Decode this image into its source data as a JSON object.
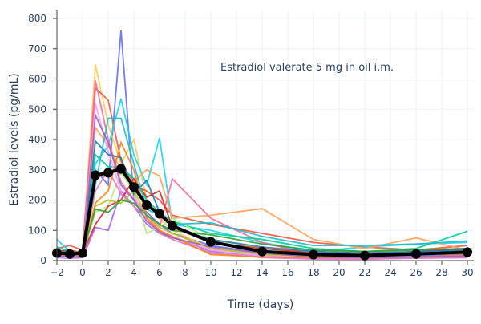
{
  "chart_data": {
    "type": "line",
    "title": "",
    "annotation": "Estradiol valerate 5 mg in oil i.m.",
    "xlabel": "Time (days)",
    "ylabel": "Estradiol levels (pg/mL)",
    "xlim": [
      -2,
      30
    ],
    "ylim": [
      0,
      800
    ],
    "xticks": [
      -2,
      0,
      2,
      4,
      6,
      8,
      10,
      12,
      14,
      16,
      18,
      20,
      22,
      24,
      26,
      28,
      30
    ],
    "yticks": [
      0,
      100,
      200,
      300,
      400,
      500,
      600,
      700,
      800
    ],
    "grid": true,
    "legend": "none",
    "x": [
      -2,
      -1,
      0,
      1,
      2,
      3,
      4,
      5,
      6,
      7,
      10,
      14,
      18,
      22,
      26,
      30
    ],
    "mean_series": {
      "color": "#000000",
      "values": [
        25,
        22,
        25,
        282,
        290,
        303,
        243,
        183,
        155,
        115,
        62,
        30,
        20,
        17,
        22,
        28
      ]
    },
    "series": [
      {
        "color": "#636efa",
        "values": [
          20,
          15,
          20,
          300,
          250,
          760,
          200,
          160,
          120,
          90,
          50,
          25,
          15,
          10,
          15,
          20
        ]
      },
      {
        "color": "#fecb52",
        "values": [
          30,
          25,
          28,
          648,
          450,
          320,
          400,
          200,
          140,
          100,
          40,
          20,
          12,
          15,
          20,
          25
        ]
      },
      {
        "color": "#ef553b",
        "values": [
          40,
          50,
          35,
          570,
          530,
          330,
          250,
          230,
          200,
          150,
          120,
          90,
          60,
          45,
          35,
          50
        ]
      },
      {
        "color": "#19d3f3",
        "values": [
          70,
          30,
          20,
          320,
          380,
          535,
          350,
          250,
          405,
          120,
          100,
          60,
          30,
          45,
          55,
          60
        ]
      },
      {
        "color": "#ff6692",
        "values": [
          15,
          20,
          25,
          595,
          400,
          260,
          200,
          150,
          110,
          270,
          140,
          60,
          20,
          10,
          12,
          15
        ]
      },
      {
        "color": "#ffa15a",
        "values": [
          35,
          30,
          30,
          440,
          380,
          300,
          260,
          300,
          280,
          140,
          150,
          172,
          70,
          40,
          75,
          35
        ]
      },
      {
        "color": "#00cc96",
        "values": [
          25,
          20,
          15,
          350,
          310,
          310,
          270,
          200,
          160,
          130,
          90,
          70,
          40,
          30,
          40,
          97
        ]
      },
      {
        "color": "#ab63fa",
        "values": [
          10,
          8,
          10,
          110,
          100,
          230,
          180,
          120,
          90,
          80,
          30,
          15,
          8,
          5,
          8,
          10
        ]
      },
      {
        "color": "#b6e880",
        "values": [
          20,
          18,
          20,
          160,
          180,
          290,
          230,
          90,
          110,
          140,
          70,
          40,
          25,
          20,
          25,
          30
        ]
      },
      {
        "color": "#ff97ff",
        "values": [
          12,
          10,
          12,
          520,
          360,
          230,
          210,
          150,
          100,
          80,
          35,
          15,
          10,
          8,
          10,
          12
        ]
      },
      {
        "color": "#d62728",
        "values": [
          30,
          35,
          25,
          120,
          180,
          200,
          270,
          210,
          230,
          110,
          60,
          40,
          25,
          20,
          30,
          40
        ]
      },
      {
        "color": "#1f77b4",
        "values": [
          25,
          20,
          15,
          395,
          350,
          340,
          220,
          265,
          160,
          110,
          70,
          45,
          30,
          25,
          30,
          35
        ]
      },
      {
        "color": "#e377c2",
        "values": [
          18,
          15,
          20,
          230,
          300,
          220,
          180,
          140,
          90,
          70,
          25,
          10,
          5,
          5,
          8,
          10
        ]
      },
      {
        "color": "#17becf",
        "values": [
          45,
          30,
          25,
          250,
          470,
          470,
          320,
          170,
          150,
          120,
          125,
          80,
          50,
          50,
          55,
          65
        ]
      },
      {
        "color": "#bcbd22",
        "values": [
          28,
          25,
          22,
          180,
          200,
          190,
          230,
          150,
          110,
          90,
          40,
          20,
          15,
          15,
          20,
          25
        ]
      },
      {
        "color": "#ff7f0e",
        "values": [
          22,
          20,
          18,
          190,
          230,
          390,
          300,
          140,
          100,
          80,
          20,
          12,
          10,
          10,
          12,
          18
        ]
      },
      {
        "color": "#9467bd",
        "values": [
          15,
          12,
          12,
          480,
          390,
          250,
          200,
          130,
          95,
          75,
          45,
          25,
          12,
          10,
          12,
          15
        ]
      },
      {
        "color": "#2ca02c",
        "values": [
          32,
          28,
          25,
          170,
          160,
          200,
          190,
          150,
          120,
          100,
          85,
          55,
          35,
          30,
          35,
          40
        ]
      }
    ]
  }
}
